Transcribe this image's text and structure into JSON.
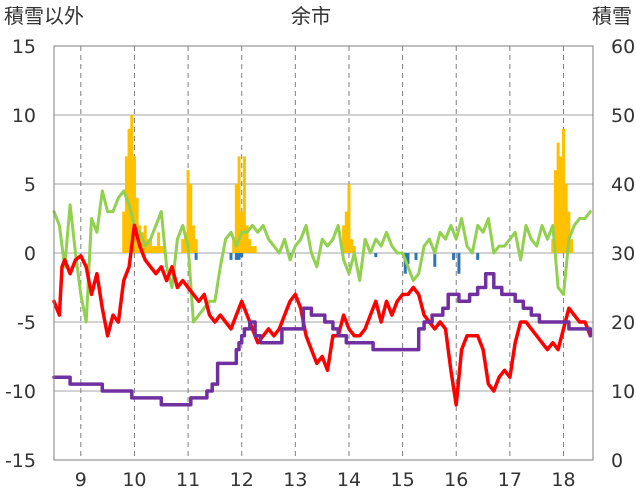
{
  "chart_data": {
    "type": "line",
    "title": "余市",
    "ylabel_left": "積雪以外",
    "ylabel_right": "積雪",
    "xlabel": "",
    "x_ticks": [
      "9",
      "10",
      "11",
      "12",
      "13",
      "14",
      "15",
      "16",
      "17",
      "18"
    ],
    "xlim": [
      8.5,
      18.55
    ],
    "ylim_left": [
      -15,
      15
    ],
    "ylim_right": [
      0,
      60
    ],
    "y_ticks_left": [
      "15",
      "10",
      "5",
      "0",
      "-5",
      "-10",
      "-15"
    ],
    "y_ticks_right": [
      "60",
      "50",
      "40",
      "30",
      "20",
      "10",
      "0"
    ],
    "grid": true,
    "colors": {
      "temperature": "#ff0000",
      "green_series": "#92d050",
      "snow_depth": "#7030a0",
      "precipitation": "#ffc000",
      "negative_bars": "#2e75b6"
    },
    "series": [
      {
        "key": "temperature",
        "axis": "left",
        "x": [
          8.5,
          8.6,
          8.65,
          8.7,
          8.8,
          8.9,
          9.0,
          9.1,
          9.2,
          9.3,
          9.4,
          9.5,
          9.6,
          9.7,
          9.8,
          9.9,
          10.0,
          10.1,
          10.2,
          10.3,
          10.4,
          10.5,
          10.6,
          10.7,
          10.8,
          10.9,
          11.0,
          11.1,
          11.2,
          11.3,
          11.4,
          11.5,
          11.6,
          11.7,
          11.8,
          11.9,
          12.0,
          12.1,
          12.2,
          12.3,
          12.4,
          12.5,
          12.6,
          12.7,
          12.8,
          12.9,
          13.0,
          13.1,
          13.2,
          13.3,
          13.4,
          13.5,
          13.6,
          13.7,
          13.8,
          13.9,
          14.0,
          14.1,
          14.2,
          14.3,
          14.4,
          14.5,
          14.6,
          14.7,
          14.8,
          14.9,
          15.0,
          15.1,
          15.2,
          15.3,
          15.4,
          15.5,
          15.6,
          15.7,
          15.8,
          15.9,
          16.0,
          16.1,
          16.2,
          16.3,
          16.4,
          16.5,
          16.6,
          16.7,
          16.8,
          16.9,
          17.0,
          17.1,
          17.2,
          17.3,
          17.4,
          17.5,
          17.6,
          17.7,
          17.8,
          17.9,
          18.0,
          18.1,
          18.2,
          18.3,
          18.4,
          18.5
        ],
        "values": [
          -3.5,
          -4.5,
          -1.0,
          -0.5,
          -1.5,
          -0.5,
          -0.2,
          -1.0,
          -3.0,
          -1.5,
          -4.0,
          -6.0,
          -4.5,
          -5.0,
          -2.0,
          -1.0,
          2.0,
          0.5,
          -0.5,
          -1.0,
          -1.5,
          -1.0,
          -2.0,
          -1.0,
          -2.5,
          -2.0,
          -2.5,
          -3.0,
          -3.5,
          -3.0,
          -4.5,
          -5.0,
          -4.5,
          -5.0,
          -5.5,
          -4.5,
          -3.5,
          -4.5,
          -5.5,
          -6.5,
          -6.0,
          -5.5,
          -6.0,
          -5.5,
          -4.5,
          -3.5,
          -3.0,
          -4.0,
          -6.0,
          -7.0,
          -8.0,
          -7.5,
          -8.5,
          -6.0,
          -6.0,
          -4.5,
          -5.5,
          -6.0,
          -6.0,
          -5.5,
          -4.5,
          -3.5,
          -5.0,
          -3.5,
          -4.5,
          -3.5,
          -3.0,
          -3.0,
          -2.5,
          -3.0,
          -4.5,
          -5.0,
          -5.5,
          -5.0,
          -5.5,
          -8.5,
          -11.0,
          -7.0,
          -6.0,
          -6.0,
          -6.0,
          -7.0,
          -9.5,
          -10.0,
          -9.0,
          -8.5,
          -9.0,
          -6.5,
          -5.0,
          -5.0,
          -5.5,
          -6.0,
          -6.5,
          -7.0,
          -6.5,
          -7.0,
          -5.5,
          -4.0,
          -4.5,
          -5.0,
          -5.0,
          -6.0
        ]
      },
      {
        "key": "green_series",
        "axis": "left",
        "x": [
          8.5,
          8.6,
          8.7,
          8.8,
          8.9,
          9.0,
          9.1,
          9.2,
          9.3,
          9.4,
          9.5,
          9.6,
          9.7,
          9.8,
          9.9,
          10.0,
          10.1,
          10.2,
          10.3,
          10.4,
          10.5,
          10.6,
          10.7,
          10.8,
          10.9,
          11.0,
          11.1,
          11.2,
          11.3,
          11.4,
          11.5,
          11.6,
          11.7,
          11.8,
          11.9,
          12.0,
          12.1,
          12.2,
          12.3,
          12.4,
          12.5,
          12.6,
          12.7,
          12.8,
          12.9,
          13.0,
          13.1,
          13.2,
          13.3,
          13.4,
          13.5,
          13.6,
          13.7,
          13.8,
          13.9,
          14.0,
          14.1,
          14.2,
          14.3,
          14.4,
          14.5,
          14.6,
          14.7,
          14.8,
          14.9,
          15.0,
          15.1,
          15.2,
          15.3,
          15.4,
          15.5,
          15.6,
          15.7,
          15.8,
          15.9,
          16.0,
          16.1,
          16.2,
          16.3,
          16.4,
          16.5,
          16.6,
          16.7,
          16.8,
          16.9,
          17.0,
          17.1,
          17.2,
          17.3,
          17.4,
          17.5,
          17.6,
          17.7,
          17.8,
          17.9,
          18.0,
          18.1,
          18.2,
          18.3,
          18.4,
          18.5
        ],
        "values": [
          3.0,
          2.0,
          -1.0,
          3.5,
          0.0,
          -3.0,
          -5.0,
          2.5,
          1.5,
          4.5,
          3.0,
          3.0,
          4.0,
          4.5,
          3.5,
          2.0,
          1.5,
          0.5,
          1.0,
          2.0,
          3.0,
          -1.0,
          -2.5,
          1.0,
          2.0,
          0.5,
          -5.0,
          -4.5,
          -4.0,
          -3.5,
          -3.5,
          -1.0,
          1.0,
          1.5,
          0.5,
          1.5,
          1.5,
          2.0,
          1.5,
          2.0,
          1.0,
          0.5,
          0.0,
          1.0,
          -0.5,
          0.5,
          1.0,
          2.0,
          0.0,
          -1.0,
          1.0,
          0.5,
          1.0,
          2.0,
          -0.5,
          -1.5,
          0.0,
          -2.0,
          1.0,
          0.0,
          1.0,
          0.5,
          1.5,
          0.5,
          0.0,
          0.0,
          -1.0,
          -2.0,
          -1.5,
          0.5,
          1.0,
          0.0,
          1.5,
          1.0,
          2.0,
          1.0,
          2.5,
          0.5,
          0.0,
          2.0,
          1.5,
          2.5,
          0.0,
          0.5,
          0.5,
          1.0,
          1.5,
          -0.5,
          2.0,
          1.0,
          0.5,
          2.0,
          1.0,
          2.0,
          -2.5,
          -3.0,
          1.0,
          2.0,
          2.5,
          2.5,
          3.0
        ]
      },
      {
        "key": "snow_depth",
        "axis": "right",
        "step": true,
        "x": [
          8.5,
          8.75,
          8.8,
          9.25,
          9.4,
          9.9,
          9.95,
          10.2,
          10.3,
          10.5,
          10.55,
          10.95,
          11.05,
          11.25,
          11.35,
          11.45,
          11.55,
          11.85,
          11.9,
          11.95,
          12.0,
          12.05,
          12.15,
          12.25,
          12.35,
          12.5,
          12.65,
          12.75,
          12.9,
          13.0,
          13.15,
          13.3,
          13.45,
          13.55,
          13.7,
          13.8,
          13.95,
          14.15,
          14.4,
          14.45,
          14.55,
          14.8,
          15.0,
          15.1,
          15.3,
          15.4,
          15.55,
          15.65,
          15.75,
          15.85,
          16.05,
          16.15,
          16.25,
          16.4,
          16.55,
          16.7,
          16.85,
          17.0,
          17.1,
          17.25,
          17.4,
          17.55,
          17.8,
          17.9,
          18.1,
          18.4,
          18.5
        ],
        "values": [
          12,
          12,
          11,
          11,
          10,
          10,
          9,
          9,
          9,
          8,
          8,
          8,
          9,
          9,
          10,
          11,
          14,
          14,
          16,
          17,
          18,
          19,
          20,
          18,
          17,
          17,
          17,
          19,
          19,
          19,
          22,
          21,
          21,
          20,
          19,
          18,
          17,
          17,
          17,
          16,
          16,
          16,
          16,
          16,
          19,
          20,
          21,
          21,
          22,
          24,
          23,
          23,
          24,
          25,
          27,
          25,
          24,
          24,
          23,
          22,
          21,
          20,
          20,
          20,
          19,
          19,
          18
        ]
      }
    ],
    "bars": [
      {
        "key": "precipitation",
        "axis": "left",
        "x": [
          9.8,
          9.85,
          9.9,
          9.95,
          10.0,
          10.05,
          10.1,
          10.15,
          10.2,
          10.25,
          10.3,
          10.35,
          10.4,
          10.45,
          10.5,
          10.55,
          10.9,
          10.95,
          11.0,
          11.05,
          11.1,
          11.15,
          11.85,
          11.9,
          11.95,
          12.0,
          12.05,
          12.1,
          12.15,
          12.2,
          12.25,
          13.9,
          13.95,
          14.0,
          14.05,
          14.1,
          17.8,
          17.85,
          17.9,
          17.95,
          18.0,
          18.05,
          18.1,
          18.15
        ],
        "values": [
          3,
          7,
          9,
          10,
          7,
          4,
          2,
          1.5,
          2,
          1,
          1,
          0.5,
          0.5,
          1.5,
          0.5,
          0.5,
          1,
          1.5,
          6,
          5,
          2,
          1,
          1,
          5,
          7,
          3,
          7,
          2,
          1,
          0.5,
          0.5,
          2,
          3,
          5,
          1,
          0.5,
          1,
          6,
          8,
          7,
          9,
          5,
          3,
          1
        ]
      },
      {
        "key": "negative_bars",
        "axis": "left",
        "x": [
          11.15,
          11.8,
          11.9,
          11.95,
          12.0,
          12.9,
          14.5,
          15.05,
          15.1,
          15.25,
          15.6,
          15.95,
          16.05,
          16.4
        ],
        "values": [
          -0.5,
          -0.5,
          -0.5,
          -0.5,
          -0.3,
          -0.5,
          -0.3,
          -1.5,
          -0.8,
          -0.5,
          -1.0,
          -0.5,
          -1.5,
          -0.5
        ]
      }
    ]
  }
}
